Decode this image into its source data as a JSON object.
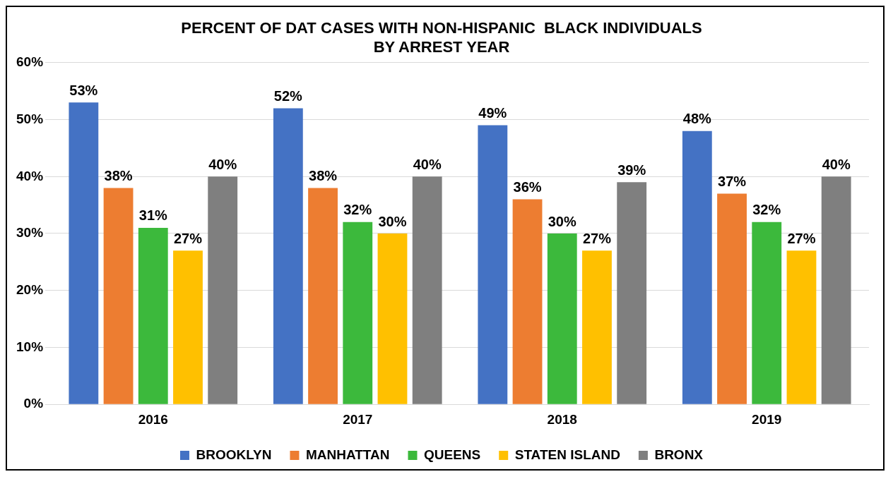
{
  "chart_data": {
    "type": "bar",
    "title": "PERCENT OF DAT CASES WITH NON-HISPANIC  BLACK INDIVIDUALS\nBY ARREST YEAR",
    "categories": [
      "2016",
      "2017",
      "2018",
      "2019"
    ],
    "series": [
      {
        "name": "BROOKLYN",
        "color": "#4472c4",
        "values": [
          53,
          52,
          49,
          48
        ],
        "value_labels": [
          "53%",
          "52%",
          "49%",
          "48%"
        ]
      },
      {
        "name": "MANHATTAN",
        "color": "#ed7d31",
        "values": [
          38,
          38,
          36,
          37
        ],
        "value_labels": [
          "38%",
          "38%",
          "36%",
          "37%"
        ]
      },
      {
        "name": "QUEENS",
        "color": "#3cb93c",
        "values": [
          31,
          32,
          30,
          32
        ],
        "value_labels": [
          "31%",
          "32%",
          "30%",
          "32%"
        ]
      },
      {
        "name": "STATEN ISLAND",
        "color": "#ffc000",
        "values": [
          27,
          30,
          27,
          27
        ],
        "value_labels": [
          "27%",
          "30%",
          "27%",
          "27%"
        ]
      },
      {
        "name": "BRONX",
        "color": "#7f7f7f",
        "values": [
          40,
          40,
          39,
          40
        ],
        "value_labels": [
          "40%",
          "40%",
          "39%",
          "40%"
        ]
      }
    ],
    "ylim": [
      0,
      60
    ],
    "yticks": [
      {
        "value": 0,
        "label": "0%"
      },
      {
        "value": 10,
        "label": "10%"
      },
      {
        "value": 20,
        "label": "20%"
      },
      {
        "value": 30,
        "label": "30%"
      },
      {
        "value": 40,
        "label": "40%"
      },
      {
        "value": 50,
        "label": "50%"
      },
      {
        "value": 60,
        "label": "60%"
      }
    ],
    "grid": "y",
    "legend": "bottom"
  }
}
